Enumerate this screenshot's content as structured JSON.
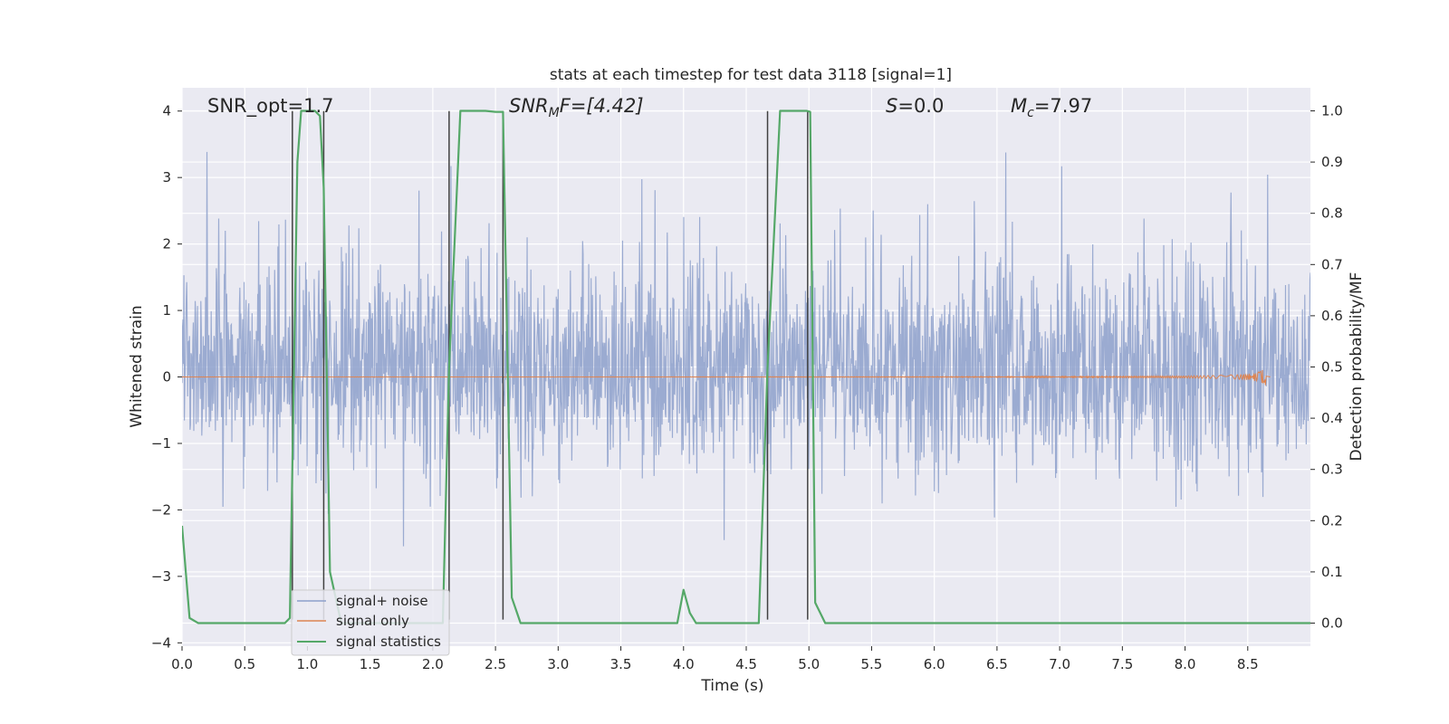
{
  "chart_data": {
    "type": "line",
    "title": "stats at each timestep for test data 3118 [signal=1]",
    "xlabel": "Time (s)",
    "ylabel": "Whitened strain",
    "y2label": "Detection probability/MF",
    "xlim": [
      0,
      9
    ],
    "ylim": [
      -4.05,
      4.35
    ],
    "y2lim": [
      -0.045,
      1.045
    ],
    "x_ticks": [
      0.0,
      0.5,
      1.0,
      1.5,
      2.0,
      2.5,
      3.0,
      3.5,
      4.0,
      4.5,
      5.0,
      5.5,
      6.0,
      6.5,
      7.0,
      7.5,
      8.0,
      8.5
    ],
    "y_ticks": [
      4,
      3,
      2,
      1,
      0,
      -1,
      -2,
      -3,
      -4
    ],
    "y2_ticks": [
      1.0,
      0.9,
      0.8,
      0.7,
      0.6,
      0.5,
      0.4,
      0.3,
      0.2,
      0.1,
      0.0
    ],
    "x_tick_labels": [
      "0.0",
      "0.5",
      "1.0",
      "1.5",
      "2.0",
      "2.5",
      "3.0",
      "3.5",
      "4.0",
      "4.5",
      "5.0",
      "5.5",
      "6.0",
      "6.5",
      "7.0",
      "7.5",
      "8.0",
      "8.5"
    ],
    "y_tick_labels": [
      "4",
      "3",
      "2",
      "1",
      "0",
      "−1",
      "−2",
      "−3",
      "−4"
    ],
    "y2_tick_labels": [
      "1.0",
      "0.9",
      "0.8",
      "0.7",
      "0.6",
      "0.5",
      "0.4",
      "0.3",
      "0.2",
      "0.1",
      "0.0"
    ],
    "grid": true,
    "legend_position": "lower-left",
    "annotations": {
      "snr_opt": "SNR_opt=1.7",
      "snr_mf_main": "SNR",
      "snr_mf_sub": "M",
      "snr_mf_rest": "F=[4.42]",
      "s_main": "S",
      "s_rest": "=0.0",
      "mc_main": "M",
      "mc_sub": "c",
      "mc_rest": "=7.97"
    },
    "series": [
      {
        "name": "signal+ noise",
        "color": "#8da0cb",
        "axis": "left",
        "x_range": [
          0,
          9
        ],
        "envelope_typical": [
          -1.4,
          1.7
        ],
        "peak_range": [
          -3.7,
          4.0
        ]
      },
      {
        "name": "signal only",
        "color": "#dd8452",
        "axis": "left",
        "x_range": [
          0,
          8.68
        ],
        "peak_amplitude": 0.18,
        "peak_time": 8.65
      },
      {
        "name": "signal statistics",
        "color": "#55a868",
        "axis": "right",
        "x": [
          0.0,
          0.03,
          0.06,
          0.13,
          0.5,
          0.82,
          0.86,
          0.92,
          0.95,
          1.06,
          1.1,
          1.13,
          1.18,
          1.27,
          2.08,
          2.13,
          2.22,
          2.3,
          2.42,
          2.5,
          2.56,
          2.63,
          2.7,
          3.0,
          3.9,
          3.95,
          4.0,
          4.05,
          4.1,
          4.6,
          4.67,
          4.77,
          4.98,
          5.01,
          5.05,
          5.13,
          6.0,
          9.0
        ],
        "y": [
          0.19,
          0.1,
          0.01,
          0.0,
          0.0,
          0.0,
          0.01,
          0.9,
          1.0,
          1.0,
          0.99,
          0.85,
          0.1,
          0.0,
          0.0,
          0.5,
          1.0,
          1.0,
          1.0,
          0.998,
          0.998,
          0.05,
          0.0,
          0.0,
          0.0,
          0.0,
          0.065,
          0.02,
          0.0,
          0.0,
          0.5,
          1.0,
          1.0,
          0.998,
          0.04,
          0.0,
          0.0,
          0.0
        ]
      }
    ],
    "vertical_lines": {
      "color": "#404040",
      "x": [
        0.88,
        1.13,
        2.13,
        2.56,
        4.67,
        4.99
      ],
      "y_from": -3.65,
      "y_to": 4.0
    }
  }
}
